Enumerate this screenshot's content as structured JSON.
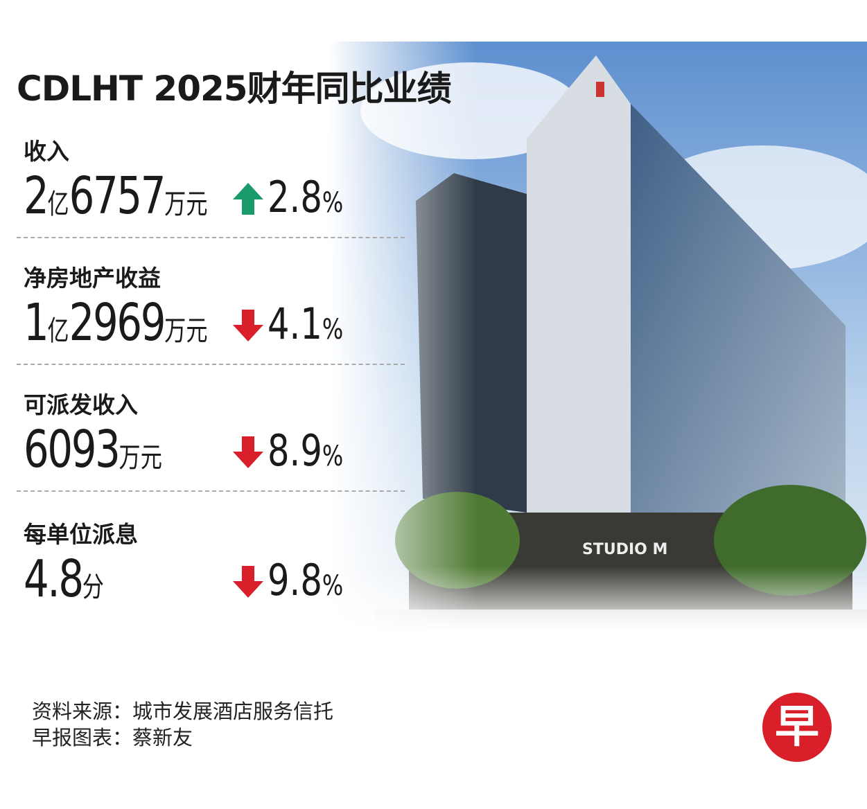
{
  "title": "CDLHT 2025财年同比业绩",
  "items": [
    {
      "label": "收入",
      "value": "2亿6757万元",
      "change": "2.8",
      "unit": "%",
      "direction": "up"
    },
    {
      "label": "净房地产收益",
      "value": "1亿2969万元",
      "change": "4.1",
      "unit": "%",
      "direction": "down"
    },
    {
      "label": "可派发收入",
      "value": "6093万元",
      "change": "8.9",
      "unit": "%",
      "direction": "down"
    },
    {
      "label": "每单位派息",
      "value": "4.8分",
      "change": "9.8",
      "unit": "%",
      "direction": "down"
    }
  ],
  "source": [
    "资料来源：城市发展酒店服务信托",
    "早报图表：蔡新友"
  ],
  "logo": "早"
}
